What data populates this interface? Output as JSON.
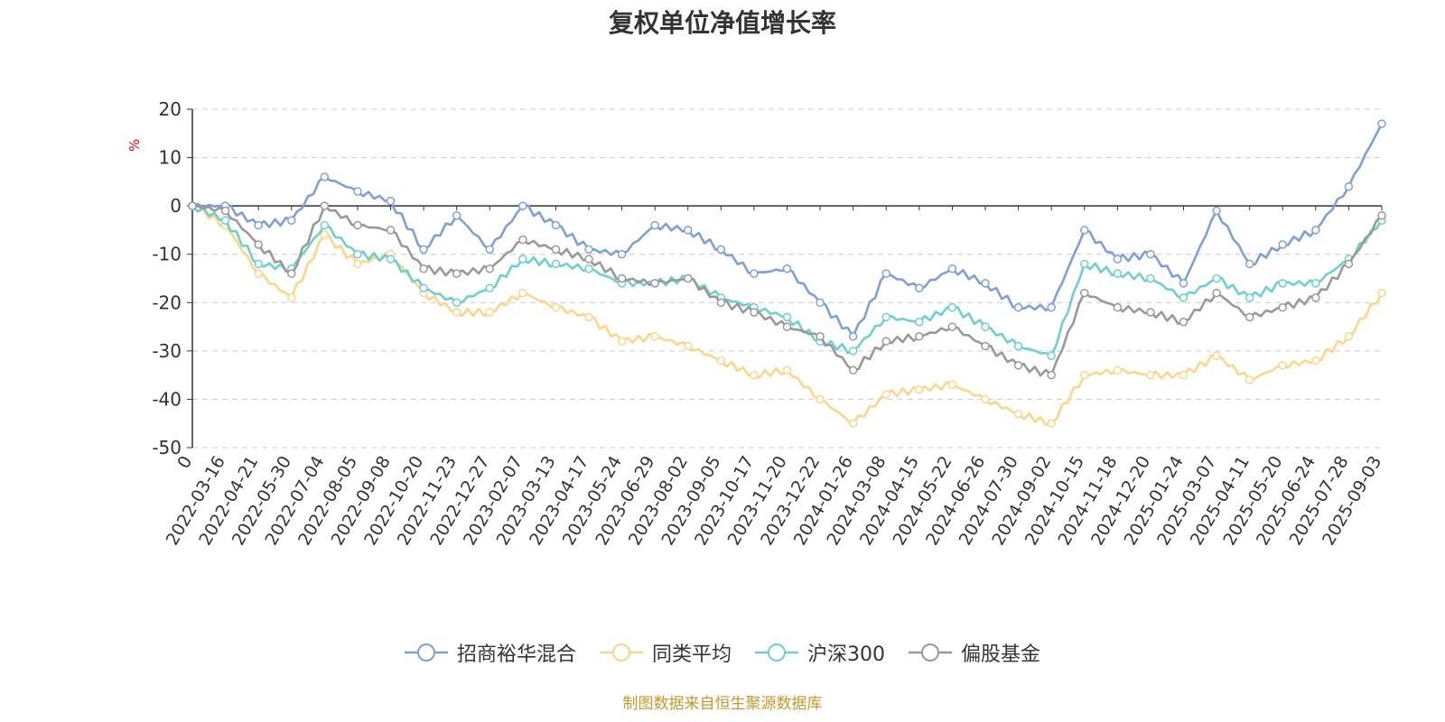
{
  "title": "复权单位净值增长率",
  "source": "制图数据来自恒生聚源数据库",
  "chart_data": {
    "type": "line",
    "title": "复权单位净值增长率",
    "ylabel": "%",
    "ylim": [
      -50,
      20
    ],
    "yticks": [
      20,
      10,
      0,
      -10,
      -20,
      -30,
      -40,
      -50
    ],
    "grid": true,
    "legend_position": "bottom-center",
    "x_tick_labels": [
      "0",
      "2022-03-16",
      "2022-04-21",
      "2022-05-30",
      "2022-07-04",
      "2022-08-05",
      "2022-09-08",
      "2022-10-20",
      "2022-11-23",
      "2022-12-27",
      "2023-02-07",
      "2023-03-13",
      "2023-04-17",
      "2023-05-24",
      "2023-06-29",
      "2023-08-02",
      "2023-09-05",
      "2023-10-17",
      "2023-11-20",
      "2023-12-22",
      "2024-01-26",
      "2024-03-08",
      "2024-04-15",
      "2024-05-22",
      "2024-06-26",
      "2024-07-30",
      "2024-09-02",
      "2024-10-15",
      "2024-11-18",
      "2024-12-20",
      "2025-01-24",
      "2025-03-07",
      "2025-04-11",
      "2025-05-20",
      "2025-06-24",
      "2025-07-28",
      "2025-09-03"
    ],
    "series": [
      {
        "name": "招商裕华混合",
        "color": "#7f9fd6",
        "values": [
          0,
          0,
          -4,
          -3,
          6,
          3,
          1,
          -9,
          -2,
          -9,
          0,
          -4,
          -9,
          -10,
          -4,
          -5,
          -9,
          -14,
          -13,
          -20,
          -27,
          -14,
          -17,
          -13,
          -16,
          -21,
          -21,
          -5,
          -11,
          -10,
          -16,
          -1,
          -12,
          -8,
          -5,
          4,
          17
        ]
      },
      {
        "name": "同类平均",
        "color": "#fbd68a",
        "values": [
          0,
          -4,
          -14,
          -19,
          -6,
          -12,
          -10,
          -18,
          -22,
          -22,
          -18,
          -21,
          -23,
          -28,
          -27,
          -29,
          -32,
          -35,
          -34,
          -40,
          -45,
          -39,
          -38,
          -37,
          -40,
          -43,
          -45,
          -35,
          -34,
          -35,
          -35,
          -31,
          -36,
          -33,
          -32,
          -27,
          -18
        ]
      },
      {
        "name": "沪深300",
        "color": "#6fcfcf",
        "values": [
          0,
          -3,
          -12,
          -13,
          -4,
          -10,
          -11,
          -17,
          -20,
          -17,
          -11,
          -12,
          -13,
          -16,
          -16,
          -15,
          -19,
          -21,
          -23,
          -28,
          -30,
          -23,
          -24,
          -21,
          -25,
          -29,
          -31,
          -12,
          -14,
          -15,
          -19,
          -15,
          -19,
          -16,
          -16,
          -11,
          -3
        ]
      },
      {
        "name": "偏股基金",
        "color": "#999999",
        "values": [
          0,
          -1,
          -8,
          -14,
          0,
          -4,
          -5,
          -13,
          -14,
          -13,
          -7,
          -9,
          -11,
          -15,
          -16,
          -15,
          -20,
          -22,
          -25,
          -27,
          -34,
          -28,
          -27,
          -25,
          -29,
          -33,
          -35,
          -18,
          -21,
          -22,
          -24,
          -18,
          -23,
          -21,
          -19,
          -12,
          -2
        ]
      }
    ]
  }
}
